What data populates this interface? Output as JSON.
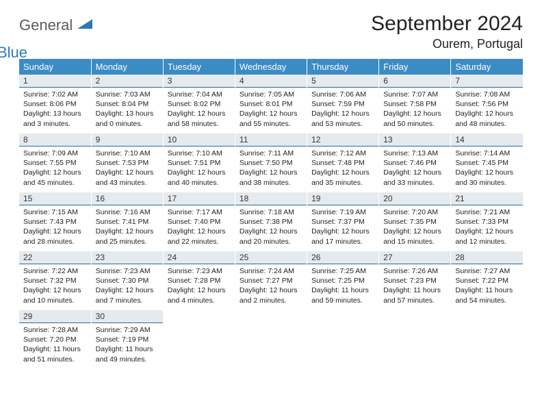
{
  "logo": {
    "text1": "General",
    "text2": "Blue"
  },
  "title": "September 2024",
  "location": "Ourem, Portugal",
  "colors": {
    "header_bg": "#3b8bc5",
    "header_fg": "#ffffff",
    "daynum_bg": "#e5eaee",
    "daynum_border": "#2a6a9a",
    "logo_gray": "#5a5a5a",
    "logo_blue": "#2a7ab8"
  },
  "weekdays": [
    "Sunday",
    "Monday",
    "Tuesday",
    "Wednesday",
    "Thursday",
    "Friday",
    "Saturday"
  ],
  "weeks": [
    [
      {
        "n": "1",
        "sr": "Sunrise: 7:02 AM",
        "ss": "Sunset: 8:06 PM",
        "d1": "Daylight: 13 hours",
        "d2": "and 3 minutes."
      },
      {
        "n": "2",
        "sr": "Sunrise: 7:03 AM",
        "ss": "Sunset: 8:04 PM",
        "d1": "Daylight: 13 hours",
        "d2": "and 0 minutes."
      },
      {
        "n": "3",
        "sr": "Sunrise: 7:04 AM",
        "ss": "Sunset: 8:02 PM",
        "d1": "Daylight: 12 hours",
        "d2": "and 58 minutes."
      },
      {
        "n": "4",
        "sr": "Sunrise: 7:05 AM",
        "ss": "Sunset: 8:01 PM",
        "d1": "Daylight: 12 hours",
        "d2": "and 55 minutes."
      },
      {
        "n": "5",
        "sr": "Sunrise: 7:06 AM",
        "ss": "Sunset: 7:59 PM",
        "d1": "Daylight: 12 hours",
        "d2": "and 53 minutes."
      },
      {
        "n": "6",
        "sr": "Sunrise: 7:07 AM",
        "ss": "Sunset: 7:58 PM",
        "d1": "Daylight: 12 hours",
        "d2": "and 50 minutes."
      },
      {
        "n": "7",
        "sr": "Sunrise: 7:08 AM",
        "ss": "Sunset: 7:56 PM",
        "d1": "Daylight: 12 hours",
        "d2": "and 48 minutes."
      }
    ],
    [
      {
        "n": "8",
        "sr": "Sunrise: 7:09 AM",
        "ss": "Sunset: 7:55 PM",
        "d1": "Daylight: 12 hours",
        "d2": "and 45 minutes."
      },
      {
        "n": "9",
        "sr": "Sunrise: 7:10 AM",
        "ss": "Sunset: 7:53 PM",
        "d1": "Daylight: 12 hours",
        "d2": "and 43 minutes."
      },
      {
        "n": "10",
        "sr": "Sunrise: 7:10 AM",
        "ss": "Sunset: 7:51 PM",
        "d1": "Daylight: 12 hours",
        "d2": "and 40 minutes."
      },
      {
        "n": "11",
        "sr": "Sunrise: 7:11 AM",
        "ss": "Sunset: 7:50 PM",
        "d1": "Daylight: 12 hours",
        "d2": "and 38 minutes."
      },
      {
        "n": "12",
        "sr": "Sunrise: 7:12 AM",
        "ss": "Sunset: 7:48 PM",
        "d1": "Daylight: 12 hours",
        "d2": "and 35 minutes."
      },
      {
        "n": "13",
        "sr": "Sunrise: 7:13 AM",
        "ss": "Sunset: 7:46 PM",
        "d1": "Daylight: 12 hours",
        "d2": "and 33 minutes."
      },
      {
        "n": "14",
        "sr": "Sunrise: 7:14 AM",
        "ss": "Sunset: 7:45 PM",
        "d1": "Daylight: 12 hours",
        "d2": "and 30 minutes."
      }
    ],
    [
      {
        "n": "15",
        "sr": "Sunrise: 7:15 AM",
        "ss": "Sunset: 7:43 PM",
        "d1": "Daylight: 12 hours",
        "d2": "and 28 minutes."
      },
      {
        "n": "16",
        "sr": "Sunrise: 7:16 AM",
        "ss": "Sunset: 7:41 PM",
        "d1": "Daylight: 12 hours",
        "d2": "and 25 minutes."
      },
      {
        "n": "17",
        "sr": "Sunrise: 7:17 AM",
        "ss": "Sunset: 7:40 PM",
        "d1": "Daylight: 12 hours",
        "d2": "and 22 minutes."
      },
      {
        "n": "18",
        "sr": "Sunrise: 7:18 AM",
        "ss": "Sunset: 7:38 PM",
        "d1": "Daylight: 12 hours",
        "d2": "and 20 minutes."
      },
      {
        "n": "19",
        "sr": "Sunrise: 7:19 AM",
        "ss": "Sunset: 7:37 PM",
        "d1": "Daylight: 12 hours",
        "d2": "and 17 minutes."
      },
      {
        "n": "20",
        "sr": "Sunrise: 7:20 AM",
        "ss": "Sunset: 7:35 PM",
        "d1": "Daylight: 12 hours",
        "d2": "and 15 minutes."
      },
      {
        "n": "21",
        "sr": "Sunrise: 7:21 AM",
        "ss": "Sunset: 7:33 PM",
        "d1": "Daylight: 12 hours",
        "d2": "and 12 minutes."
      }
    ],
    [
      {
        "n": "22",
        "sr": "Sunrise: 7:22 AM",
        "ss": "Sunset: 7:32 PM",
        "d1": "Daylight: 12 hours",
        "d2": "and 10 minutes."
      },
      {
        "n": "23",
        "sr": "Sunrise: 7:23 AM",
        "ss": "Sunset: 7:30 PM",
        "d1": "Daylight: 12 hours",
        "d2": "and 7 minutes."
      },
      {
        "n": "24",
        "sr": "Sunrise: 7:23 AM",
        "ss": "Sunset: 7:28 PM",
        "d1": "Daylight: 12 hours",
        "d2": "and 4 minutes."
      },
      {
        "n": "25",
        "sr": "Sunrise: 7:24 AM",
        "ss": "Sunset: 7:27 PM",
        "d1": "Daylight: 12 hours",
        "d2": "and 2 minutes."
      },
      {
        "n": "26",
        "sr": "Sunrise: 7:25 AM",
        "ss": "Sunset: 7:25 PM",
        "d1": "Daylight: 11 hours",
        "d2": "and 59 minutes."
      },
      {
        "n": "27",
        "sr": "Sunrise: 7:26 AM",
        "ss": "Sunset: 7:23 PM",
        "d1": "Daylight: 11 hours",
        "d2": "and 57 minutes."
      },
      {
        "n": "28",
        "sr": "Sunrise: 7:27 AM",
        "ss": "Sunset: 7:22 PM",
        "d1": "Daylight: 11 hours",
        "d2": "and 54 minutes."
      }
    ],
    [
      {
        "n": "29",
        "sr": "Sunrise: 7:28 AM",
        "ss": "Sunset: 7:20 PM",
        "d1": "Daylight: 11 hours",
        "d2": "and 51 minutes."
      },
      {
        "n": "30",
        "sr": "Sunrise: 7:29 AM",
        "ss": "Sunset: 7:19 PM",
        "d1": "Daylight: 11 hours",
        "d2": "and 49 minutes."
      },
      {
        "empty": true
      },
      {
        "empty": true
      },
      {
        "empty": true
      },
      {
        "empty": true
      },
      {
        "empty": true
      }
    ]
  ]
}
